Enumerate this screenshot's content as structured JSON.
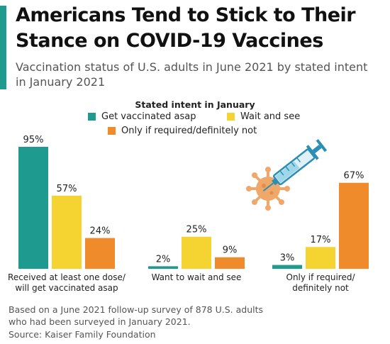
{
  "header": {
    "title": "Americans Tend to Stick to Their Stance on COVID-19 Vaccines",
    "subtitle": "Vaccination status of U.S. adults in June 2021 by stated intent in January 2021"
  },
  "legend": {
    "title": "Stated intent in January",
    "items": [
      {
        "label": "Get vaccinated asap",
        "color": "#1f9a8e"
      },
      {
        "label": "Wait and see",
        "color": "#f5d431"
      },
      {
        "label": "Only if required/definitely not",
        "color": "#f08b2c"
      }
    ]
  },
  "chart_data": {
    "type": "bar",
    "title": "Americans Tend to Stick to Their Stance on COVID-19 Vaccines",
    "subtitle": "Vaccination status of U.S. adults in June 2021 by stated intent in January 2021",
    "categories": [
      "Received at least one dose/ will get vaccinated asap",
      "Want to wait and see",
      "Only if required/ definitely not"
    ],
    "category_lines": [
      [
        "Received at least one dose/",
        "will get vaccinated asap"
      ],
      [
        "Want to wait and see"
      ],
      [
        "Only if required/",
        "definitely not"
      ]
    ],
    "series": [
      {
        "name": "Get vaccinated asap",
        "color": "#1f9a8e",
        "values": [
          95,
          2,
          3
        ]
      },
      {
        "name": "Wait and see",
        "color": "#f5d431",
        "values": [
          57,
          25,
          17
        ]
      },
      {
        "name": "Only if required/definitely not",
        "color": "#f08b2c",
        "values": [
          24,
          9,
          67
        ]
      }
    ],
    "value_suffix": "%",
    "ylim": [
      0,
      100
    ],
    "grid": false,
    "legend_position": "top"
  },
  "footer": {
    "note": "Based on a June 2021 follow-up survey of 878 U.S. adults who had been surveyed in January 2021.",
    "note_lines": [
      "Based on a June 2021 follow-up survey of 878 U.S. adults",
      "who had been surveyed in January 2021."
    ],
    "source": "Source: Kaiser Family Foundation"
  },
  "decor": {
    "icon": "syringe-virus-icon",
    "virus_color": "#f0a86a",
    "syringe_color": "#2a8fb3"
  }
}
